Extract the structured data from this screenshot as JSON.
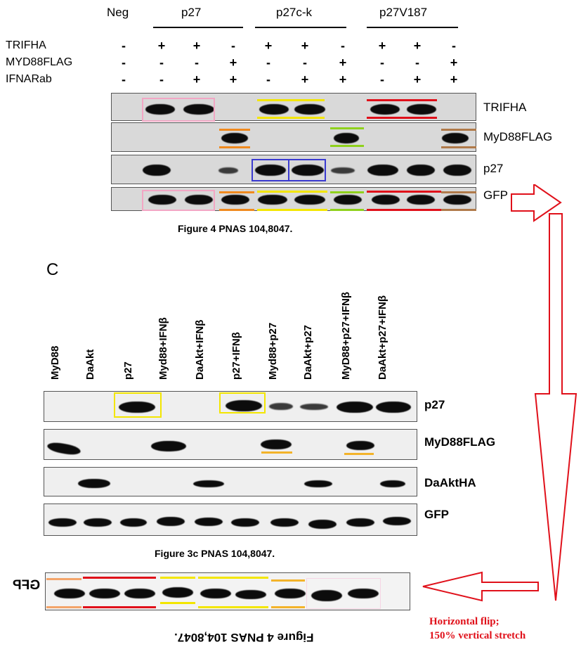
{
  "top_figure": {
    "groups": [
      {
        "label": "Neg"
      },
      {
        "label": "p27"
      },
      {
        "label": "p27c-k"
      },
      {
        "label": "p27V187"
      }
    ],
    "conditions": [
      {
        "label": "TRIFHA",
        "signs": [
          "-",
          "+",
          "+",
          "-",
          "+",
          "+",
          "-",
          "+",
          "+",
          "-"
        ]
      },
      {
        "label": "MYD88FLAG",
        "signs": [
          "-",
          "-",
          "-",
          "+",
          "-",
          "-",
          "+",
          "-",
          "-",
          "+"
        ]
      },
      {
        "label": "IFNARab",
        "signs": [
          "-",
          "-",
          "+",
          "+",
          "-",
          "+",
          "+",
          "-",
          "+",
          "+"
        ]
      }
    ],
    "blot_labels": [
      "TRIFHA",
      "MyD88FLAG",
      "p27",
      "GFP"
    ],
    "caption": "Figure 4 PNAS 104,8047."
  },
  "bottom_figure": {
    "panel_letter": "C",
    "lanes": [
      "MyD88",
      "DaAkt",
      "p27",
      "Myd88+IFNβ",
      "DaAkt+IFNβ",
      "p27+IFNβ",
      "Myd88+p27",
      "DaAkt+p27",
      "MyD88+p27+IFNβ",
      "DaAkt+p27+IFNβ"
    ],
    "blot_labels": [
      "p27",
      "MyD88FLAG",
      "DaAktHA",
      "GFP"
    ],
    "caption": "Figure 3c PNAS 104,8047."
  },
  "flipped_strip": {
    "label": "GFP",
    "caption": "Figure 4 PNAS 104,8047."
  },
  "annotation": {
    "line1": "Horizontal flip;",
    "line2": "150% vertical stretch"
  },
  "colors": {
    "pink": "#f2a6c4",
    "yellow": "#f3e600",
    "red": "#e0101a",
    "orange": "#f08a1e",
    "green": "#8fd11c",
    "brown": "#b07a4a",
    "blue": "#3a3ad0",
    "arrow": "#e0101a"
  }
}
